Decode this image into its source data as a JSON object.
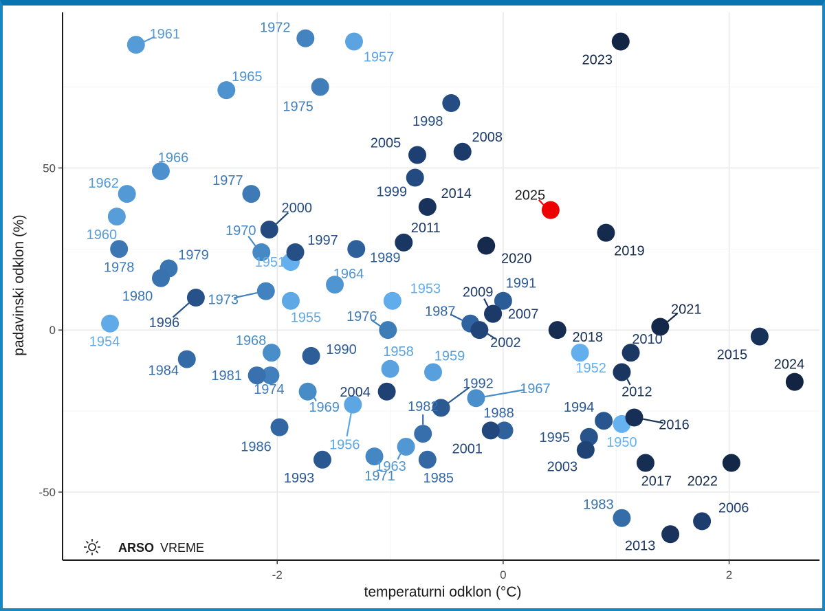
{
  "colors": {
    "frame_top": "#0a74b0",
    "frame_side": "#1a87c2",
    "highlight": "#ee0000"
  },
  "logo": {
    "icon": "sun-icon",
    "brand_bold": "ARSO",
    "brand_regular": "VREME"
  },
  "chart_data": {
    "type": "scatter",
    "xlabel": "temperaturni odklon (°C)",
    "ylabel": "padavinski odklon (%)",
    "xlim": [
      -3.9,
      2.8
    ],
    "ylim": [
      -71,
      98
    ],
    "xticks": [
      -2,
      0,
      2
    ],
    "yticks": [
      -50,
      0,
      50
    ],
    "xtick_labels": [
      "-2",
      "0",
      "2"
    ],
    "ytick_labels": [
      "-50",
      "0",
      "50"
    ],
    "grid": true,
    "color_encoding": "year (light blue = older, dark navy = recent); 2025 highlighted in red",
    "points": [
      {
        "year": "1950",
        "x": 1.05,
        "y": -29
      },
      {
        "year": "1951",
        "x": -1.88,
        "y": 21
      },
      {
        "year": "1952",
        "x": 0.68,
        "y": -7
      },
      {
        "year": "1953",
        "x": -0.98,
        "y": 9
      },
      {
        "year": "1954",
        "x": -3.48,
        "y": 2
      },
      {
        "year": "1955",
        "x": -1.88,
        "y": 9
      },
      {
        "year": "1956",
        "x": -1.33,
        "y": -23
      },
      {
        "year": "1957",
        "x": -1.32,
        "y": 89
      },
      {
        "year": "1958",
        "x": -1.0,
        "y": -12
      },
      {
        "year": "1959",
        "x": -0.62,
        "y": -13
      },
      {
        "year": "1960",
        "x": -3.42,
        "y": 35
      },
      {
        "year": "1961",
        "x": -3.25,
        "y": 88
      },
      {
        "year": "1962",
        "x": -3.33,
        "y": 42
      },
      {
        "year": "1963",
        "x": -0.86,
        "y": -36
      },
      {
        "year": "1964",
        "x": -1.49,
        "y": 14
      },
      {
        "year": "1965",
        "x": -2.45,
        "y": 74
      },
      {
        "year": "1966",
        "x": -3.03,
        "y": 49
      },
      {
        "year": "1967",
        "x": -0.24,
        "y": -21
      },
      {
        "year": "1968",
        "x": -2.05,
        "y": -7
      },
      {
        "year": "1969",
        "x": -1.73,
        "y": -19
      },
      {
        "year": "1970",
        "x": -2.14,
        "y": 24
      },
      {
        "year": "1971",
        "x": -1.14,
        "y": -39
      },
      {
        "year": "1972",
        "x": -1.75,
        "y": 90
      },
      {
        "year": "1973",
        "x": -2.1,
        "y": 12
      },
      {
        "year": "1974",
        "x": -2.06,
        "y": -14
      },
      {
        "year": "1975",
        "x": -1.62,
        "y": 75
      },
      {
        "year": "1976",
        "x": -1.02,
        "y": 0
      },
      {
        "year": "1977",
        "x": -2.23,
        "y": 42
      },
      {
        "year": "1978",
        "x": -3.4,
        "y": 25
      },
      {
        "year": "1979",
        "x": -2.96,
        "y": 19
      },
      {
        "year": "1980",
        "x": -3.03,
        "y": 16
      },
      {
        "year": "1981",
        "x": -2.18,
        "y": -14
      },
      {
        "year": "1982",
        "x": -0.71,
        "y": -32
      },
      {
        "year": "1983",
        "x": 1.05,
        "y": -58
      },
      {
        "year": "1984",
        "x": -2.8,
        "y": -9
      },
      {
        "year": "1985",
        "x": -0.67,
        "y": -40
      },
      {
        "year": "1986",
        "x": -1.98,
        "y": -30
      },
      {
        "year": "1987",
        "x": -0.29,
        "y": 2
      },
      {
        "year": "1988",
        "x": 0.01,
        "y": -31
      },
      {
        "year": "1989",
        "x": -1.3,
        "y": 25
      },
      {
        "year": "1990",
        "x": -1.7,
        "y": -8
      },
      {
        "year": "1991",
        "x": 0.0,
        "y": 9
      },
      {
        "year": "1992",
        "x": -0.55,
        "y": -24
      },
      {
        "year": "1993",
        "x": -1.6,
        "y": -40
      },
      {
        "year": "1994",
        "x": 0.89,
        "y": -28
      },
      {
        "year": "1995",
        "x": 0.76,
        "y": -33
      },
      {
        "year": "1996",
        "x": -2.72,
        "y": 10
      },
      {
        "year": "1997",
        "x": -1.84,
        "y": 24
      },
      {
        "year": "1998",
        "x": -0.46,
        "y": 70
      },
      {
        "year": "1999",
        "x": -0.78,
        "y": 47
      },
      {
        "year": "2000",
        "x": -2.07,
        "y": 31
      },
      {
        "year": "2001",
        "x": -0.11,
        "y": -31
      },
      {
        "year": "2002",
        "x": -0.21,
        "y": 0
      },
      {
        "year": "2003",
        "x": 0.73,
        "y": -37
      },
      {
        "year": "2004",
        "x": -1.03,
        "y": -19
      },
      {
        "year": "2005",
        "x": -0.76,
        "y": 54
      },
      {
        "year": "2006",
        "x": 1.76,
        "y": -59
      },
      {
        "year": "2007",
        "x": -0.09,
        "y": 5
      },
      {
        "year": "2008",
        "x": -0.36,
        "y": 55
      },
      {
        "year": "2009",
        "x": -0.09,
        "y": 5
      },
      {
        "year": "2010",
        "x": 1.13,
        "y": -7
      },
      {
        "year": "2011",
        "x": -0.88,
        "y": 27
      },
      {
        "year": "2012",
        "x": 1.05,
        "y": -13
      },
      {
        "year": "2013",
        "x": 1.48,
        "y": -63
      },
      {
        "year": "2014",
        "x": -0.67,
        "y": 38
      },
      {
        "year": "2015",
        "x": 2.27,
        "y": -2
      },
      {
        "year": "2016",
        "x": 1.16,
        "y": -27
      },
      {
        "year": "2017",
        "x": 1.26,
        "y": -41
      },
      {
        "year": "2018",
        "x": 0.48,
        "y": 0
      },
      {
        "year": "2019",
        "x": 0.91,
        "y": 30
      },
      {
        "year": "2020",
        "x": -0.15,
        "y": 26
      },
      {
        "year": "2021",
        "x": 1.39,
        "y": 1
      },
      {
        "year": "2022",
        "x": 2.02,
        "y": -41
      },
      {
        "year": "2023",
        "x": 1.04,
        "y": 89
      },
      {
        "year": "2024",
        "x": 2.58,
        "y": -16
      },
      {
        "year": "2025",
        "x": 0.42,
        "y": 37
      }
    ]
  }
}
